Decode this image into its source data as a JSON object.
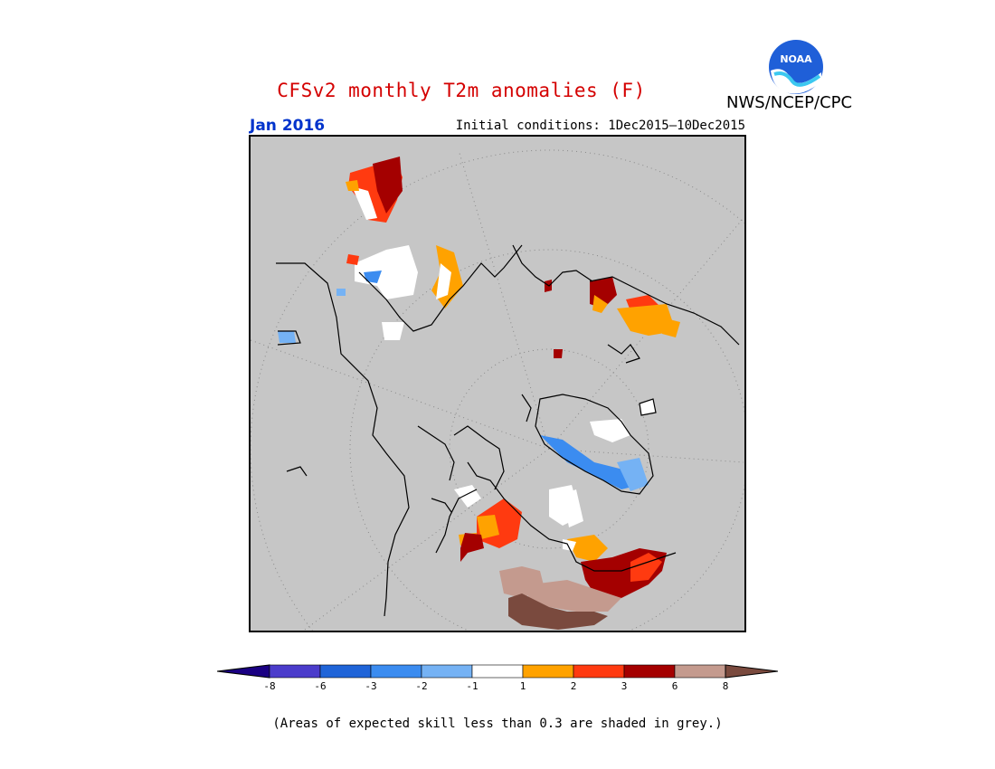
{
  "title": "CFSv2 monthly T2m anomalies (F)",
  "agency": "NWS/NCEP/CPC",
  "logo_text": "NOAA",
  "month": "Jan 2016",
  "initial_conditions": "Initial conditions: 1Dec2015—10Dec2015",
  "footnote": "(Areas of expected skill less than 0.3 are shaded in grey.)",
  "colorbar": {
    "tick_labels": [
      "-8",
      "-6",
      "-3",
      "-2",
      "-1",
      "1",
      "2",
      "3",
      "6",
      "8"
    ],
    "colors": [
      "#1a0083",
      "#4b3ccb",
      "#1f64d8",
      "#3b8cf0",
      "#75b2f4",
      "#ffffff",
      "#ffa200",
      "#ff3a10",
      "#a40000",
      "#c49a8e",
      "#7a4a3e"
    ]
  },
  "map": {
    "background_color": "#c6c6c6",
    "projection": "north polar stereographic"
  }
}
